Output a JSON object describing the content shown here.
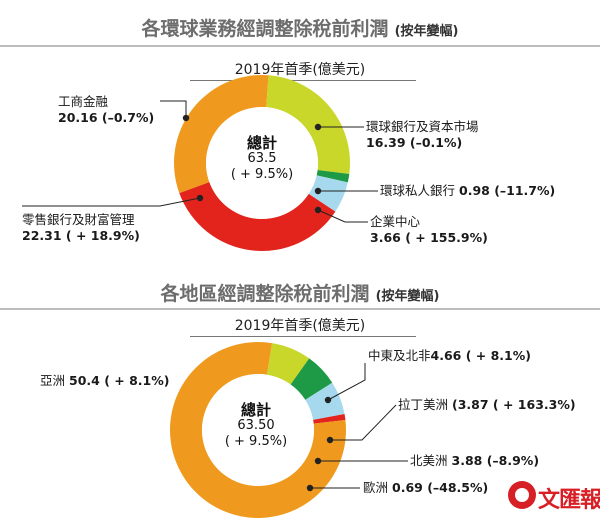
{
  "chart_data": [
    {
      "type": "pie",
      "title": "各環球業務經調整除稅前利潤",
      "title_note": "(按年變幅)",
      "subtitle": "2019年首季(億美元)",
      "center": {
        "label": "總計",
        "value": "63.5",
        "change": "( + 9.5%)"
      },
      "categories": [
        "工商金融",
        "環球銀行及資本市場",
        "環球私人銀行",
        "企業中心",
        "零售銀行及財富管理"
      ],
      "values": [
        20.16,
        16.39,
        0.98,
        3.66,
        22.31
      ],
      "changes": [
        "(–0.7%)",
        "(–0.1%)",
        "(–11.7%)",
        "( + 155.9%)",
        "( + 18.9%)"
      ],
      "colors": [
        "#ef9a1e",
        "#c9d62a",
        "#1e9a46",
        "#a7d9ee",
        "#e2241d"
      ]
    },
    {
      "type": "pie",
      "title": "各地區經調整除稅前利潤",
      "title_note": "(按年變幅)",
      "subtitle": "2019年首季(億美元)",
      "center": {
        "label": "總計",
        "value": "63.50",
        "change": "( + 9.5%)"
      },
      "categories": [
        "中東及北非",
        "拉丁美洲",
        "北美洲",
        "歐洲",
        "亞洲"
      ],
      "values": [
        4.66,
        3.87,
        3.88,
        0.69,
        50.4
      ],
      "changes": [
        "( + 8.1%)",
        "( + 163.3%)",
        "(–8.9%)",
        "(–48.5%)",
        "( + 8.1%)"
      ],
      "colors": [
        "#c9d62a",
        "#1e9a46",
        "#a7d9ee",
        "#e2241d",
        "#ef9a1e"
      ]
    }
  ],
  "labels": {
    "c1_gcb_name": "工商金融",
    "c1_gcb_val": "20.16 (–0.7%)",
    "c1_gbm_name": "環球銀行及資本市場",
    "c1_gbm_val": "16.39 (–0.1%)",
    "c1_gpb_name": "環球私人銀行",
    "c1_gpb_val": "0.98 (–11.7%)",
    "c1_corp_name": "企業中心",
    "c1_corp_val": "3.66 ( + 155.9%)",
    "c1_rbwm_name": "零售銀行及財富管理",
    "c1_rbwm_val": "22.31 ( + 18.9%)",
    "c2_asia_name": "亞洲",
    "c2_asia_val": "50.4 ( + 8.1%)",
    "c2_mena_name": "中東及北非",
    "c2_mena_val": "4.66 ( + 8.1%)",
    "c2_latam_name": "拉丁美洲",
    "c2_latam_val": "(3.87 ( + 163.3%)",
    "c2_na_name": "北美洲",
    "c2_na_val": "3.88 (–8.9%)",
    "c2_eu_name": "歐洲",
    "c2_eu_val": "0.69 (–48.5%)"
  },
  "logo": {
    "text": "文匯報",
    "icon": "wenweipo-logo-icon"
  }
}
